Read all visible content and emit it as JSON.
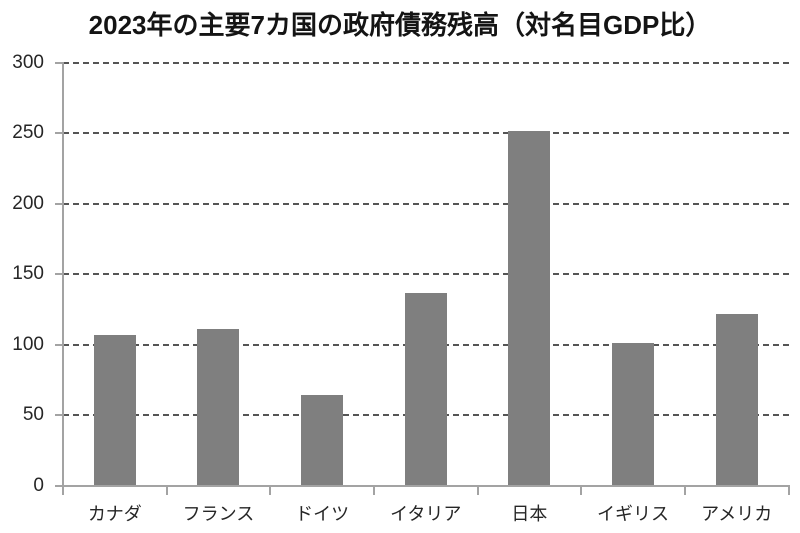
{
  "chart_data": {
    "type": "bar",
    "title": "2023年の主要7カ国の政府債務残高（対名目GDP比）",
    "categories": [
      "カナダ",
      "フランス",
      "ドイツ",
      "イタリア",
      "日本",
      "イギリス",
      "アメリカ"
    ],
    "values": [
      107,
      111,
      64,
      137,
      252,
      101,
      122
    ],
    "xlabel": "",
    "ylabel": "",
    "ylim": [
      0,
      300
    ],
    "yticks": [
      0,
      50,
      100,
      150,
      200,
      250,
      300
    ],
    "grid": "horizontal-dashed",
    "legend": "none",
    "colors": {
      "bar": "#7f7f7f",
      "gridline": "#555555",
      "axis": "#a3a3a3",
      "title_text": "#141414",
      "label_text": "#262626",
      "background": "#ffffff"
    }
  }
}
